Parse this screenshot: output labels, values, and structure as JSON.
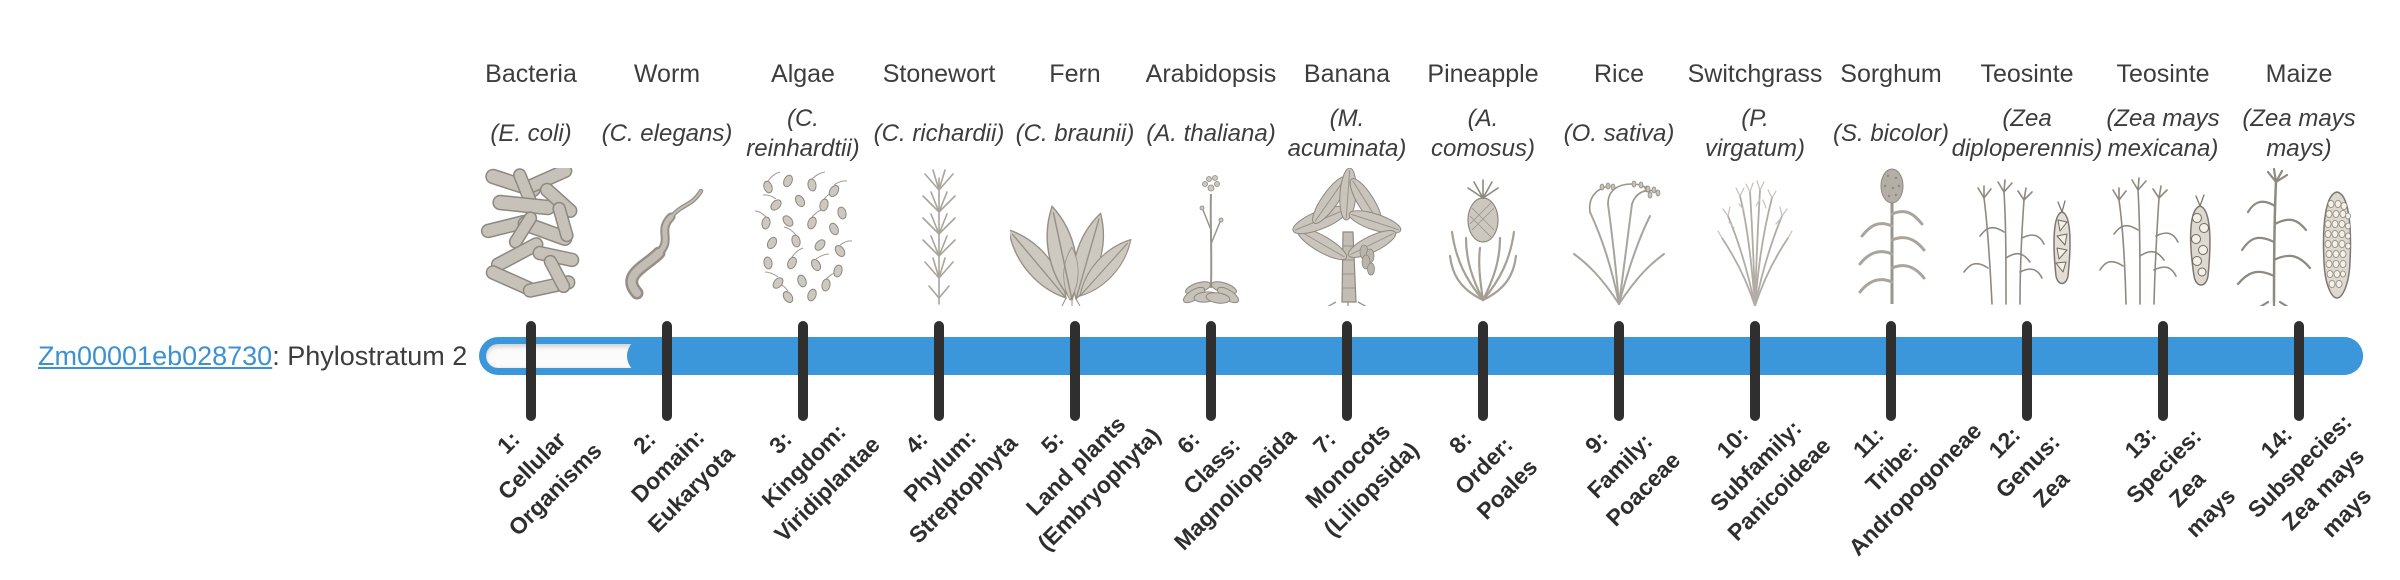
{
  "gene": {
    "id": "Zm00001eb028730",
    "rest": ": Phylostratum 2",
    "phylostratum": 2
  },
  "colors": {
    "bar_blue": "#3b97d9",
    "tick": "#2f2f2f",
    "link_blue": "#3c92d1",
    "text": "#3d3d3d"
  },
  "phylostrata": [
    {
      "organism": "Bacteria",
      "sci": "(E. coli)",
      "tick_label": "1:\nCellular\nOrganisms",
      "icon": "bacteria-illustration"
    },
    {
      "organism": "Worm",
      "sci": "(C. elegans)",
      "tick_label": "2:\nDomain:\nEukaryota",
      "icon": "worm-illustration"
    },
    {
      "organism": "Algae",
      "sci": "(C.\nreinhardtii)",
      "tick_label": "3:\nKingdom:\nViridiplantae",
      "icon": "algae-illustration"
    },
    {
      "organism": "Stonewort",
      "sci": "(C. richardii)",
      "tick_label": "4:\nPhylum:\nStreptophyta",
      "icon": "stonewort-illustration"
    },
    {
      "organism": "Fern",
      "sci": "(C. braunii)",
      "tick_label": "5:\nLand plants\n(Embryophyta)",
      "icon": "fern-illustration"
    },
    {
      "organism": "Arabidopsis",
      "sci": "(A. thaliana)",
      "tick_label": "6:\nClass:\nMagnoliopsida",
      "icon": "arabidopsis-illustration"
    },
    {
      "organism": "Banana",
      "sci": "(M.\nacuminata)",
      "tick_label": "7:\nMonocots\n(Liliopsida)",
      "icon": "banana-illustration"
    },
    {
      "organism": "Pineapple",
      "sci": "(A.\ncomosus)",
      "tick_label": "8:\nOrder:\nPoales",
      "icon": "pineapple-illustration"
    },
    {
      "organism": "Rice",
      "sci": "(O. sativa)",
      "tick_label": "9:\nFamily:\nPoaceae",
      "icon": "rice-illustration"
    },
    {
      "organism": "Switchgrass",
      "sci": "(P.\nvirgatum)",
      "tick_label": "10:\nSubfamily:\nPanicoideae",
      "icon": "switchgrass-illustration"
    },
    {
      "organism": "Sorghum",
      "sci": "(S. bicolor)",
      "tick_label": "11:\nTribe:\nAndropogoneae",
      "icon": "sorghum-illustration"
    },
    {
      "organism": "Teosinte",
      "sci": "(Zea\ndiploperennis)",
      "tick_label": "12:\nGenus:\nZea",
      "icon": "teosinte-diploperennis-illustration"
    },
    {
      "organism": "Teosinte",
      "sci": "(Zea mays\nmexicana)",
      "tick_label": "13:\nSpecies:\nZea\nmays",
      "icon": "teosinte-mexicana-illustration"
    },
    {
      "organism": "Maize",
      "sci": "(Zea mays\nmays)",
      "tick_label": "14:\nSubspecies:\nZea mays\nmays",
      "icon": "maize-illustration"
    }
  ]
}
